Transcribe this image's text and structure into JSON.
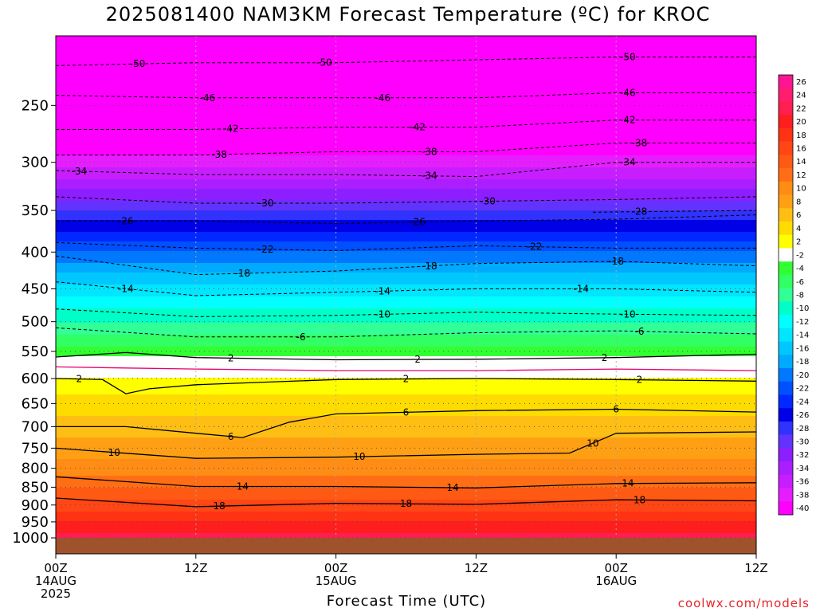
{
  "title": "2025081400 NAM3KM Forecast Temperature (ºC) for KROC",
  "xlabel": "Forecast Time (UTC)",
  "credit": "coolwx.com/models",
  "chart_data": {
    "type": "heatmap",
    "title": "2025081400 NAM3KM Forecast Temperature (ºC) for KROC",
    "xlabel": "Forecast Time (UTC)",
    "ylabel": "",
    "y_scale": "log-pressure",
    "ylim": [
      1000,
      200
    ],
    "xlim": [
      0,
      60
    ],
    "x_ticks": [
      {
        "value": 0,
        "lines": [
          "00Z",
          "14AUG",
          "2025"
        ]
      },
      {
        "value": 12,
        "lines": [
          "12Z"
        ]
      },
      {
        "value": 24,
        "lines": [
          "00Z",
          "15AUG"
        ]
      },
      {
        "value": 36,
        "lines": [
          "12Z"
        ]
      },
      {
        "value": 48,
        "lines": [
          "00Z",
          "16AUG"
        ]
      },
      {
        "value": 60,
        "lines": [
          "12Z"
        ]
      }
    ],
    "y_ticks": [
      250,
      300,
      350,
      400,
      450,
      500,
      550,
      600,
      650,
      700,
      750,
      800,
      850,
      900,
      950,
      1000
    ],
    "colorbar": {
      "levels": [
        26,
        24,
        22,
        20,
        18,
        16,
        14,
        12,
        10,
        8,
        6,
        4,
        2,
        -2,
        -4,
        -6,
        -8,
        -10,
        -12,
        -14,
        -16,
        -18,
        -20,
        -22,
        -24,
        -26,
        -28,
        -30,
        -32,
        -34,
        -36,
        -38,
        -40
      ],
      "colors": [
        "#ff1493",
        "#ff1e6e",
        "#ff1e50",
        "#ff1e1e",
        "#ff3214",
        "#ff4614",
        "#ff5a14",
        "#ff6e14",
        "#ff8c14",
        "#ffa014",
        "#ffbe14",
        "#ffdc00",
        "#ffff00",
        "#ffffff",
        "#32ff32",
        "#32ff64",
        "#32ff96",
        "#00ffc8",
        "#00ffff",
        "#00e6ff",
        "#00c8ff",
        "#00aaff",
        "#0078ff",
        "#0050ff",
        "#0028ff",
        "#0000e6",
        "#3232ff",
        "#6432ff",
        "#8c1eff",
        "#aa1eff",
        "#c81eff",
        "#e61eff",
        "#ff00ff"
      ]
    },
    "temperature_profile": [
      {
        "pressure": 1000,
        "temp": 23
      },
      {
        "pressure": 950,
        "temp": 20
      },
      {
        "pressure": 900,
        "temp": 17
      },
      {
        "pressure": 850,
        "temp": 14
      },
      {
        "pressure": 800,
        "temp": 11
      },
      {
        "pressure": 750,
        "temp": 9
      },
      {
        "pressure": 700,
        "temp": 7
      },
      {
        "pressure": 650,
        "temp": 5
      },
      {
        "pressure": 600,
        "temp": 2
      },
      {
        "pressure": 550,
        "temp": -3
      },
      {
        "pressure": 500,
        "temp": -8
      },
      {
        "pressure": 450,
        "temp": -13
      },
      {
        "pressure": 400,
        "temp": -20
      },
      {
        "pressure": 350,
        "temp": -28
      },
      {
        "pressure": 300,
        "temp": -37
      },
      {
        "pressure": 250,
        "temp": -46
      },
      {
        "pressure": 200,
        "temp": -52
      }
    ],
    "contours": [
      {
        "label": "-50",
        "style": "dashed",
        "points": [
          [
            0,
            220
          ],
          [
            12,
            218
          ],
          [
            24,
            218
          ],
          [
            36,
            216
          ],
          [
            48,
            214
          ],
          [
            60,
            214
          ]
        ],
        "labels_at": [
          7,
          23,
          49
        ]
      },
      {
        "label": "-46",
        "style": "dashed",
        "points": [
          [
            0,
            242
          ],
          [
            12,
            244
          ],
          [
            24,
            244
          ],
          [
            36,
            244
          ],
          [
            48,
            240
          ],
          [
            60,
            240
          ]
        ],
        "labels_at": [
          13,
          28,
          49
        ]
      },
      {
        "label": "-42",
        "style": "dashed",
        "points": [
          [
            0,
            270
          ],
          [
            12,
            270
          ],
          [
            24,
            268
          ],
          [
            36,
            268
          ],
          [
            48,
            262
          ],
          [
            60,
            262
          ]
        ],
        "labels_at": [
          15,
          31,
          49
        ]
      },
      {
        "label": "-38",
        "style": "dashed",
        "points": [
          [
            0,
            293
          ],
          [
            12,
            293
          ],
          [
            24,
            290
          ],
          [
            36,
            290
          ],
          [
            48,
            282
          ],
          [
            60,
            282
          ]
        ],
        "labels_at": [
          14,
          32,
          50
        ]
      },
      {
        "label": "-34",
        "style": "dashed",
        "points": [
          [
            0,
            308
          ],
          [
            12,
            312
          ],
          [
            24,
            312
          ],
          [
            36,
            314
          ],
          [
            48,
            300
          ],
          [
            60,
            300
          ]
        ],
        "labels_at": [
          2,
          32,
          49
        ]
      },
      {
        "label": "-30",
        "style": "dashed",
        "points": [
          [
            0,
            335
          ],
          [
            12,
            342
          ],
          [
            24,
            342
          ],
          [
            36,
            340
          ],
          [
            48,
            338
          ],
          [
            60,
            335
          ]
        ],
        "labels_at": [
          18,
          37
        ]
      },
      {
        "label": "-26",
        "style": "dashed",
        "points": [
          [
            0,
            362
          ],
          [
            12,
            362
          ],
          [
            24,
            365
          ],
          [
            36,
            362
          ],
          [
            48,
            360
          ],
          [
            60,
            355
          ]
        ],
        "labels_at": [
          6,
          31
        ]
      },
      {
        "label": "-28",
        "style": "dashed",
        "points": [
          [
            46,
            352
          ],
          [
            60,
            350
          ]
        ],
        "labels_at": [
          50
        ]
      },
      {
        "label": "-22",
        "style": "dashed",
        "points": [
          [
            0,
            388
          ],
          [
            12,
            395
          ],
          [
            24,
            398
          ],
          [
            36,
            392
          ],
          [
            48,
            395
          ],
          [
            60,
            395
          ]
        ],
        "labels_at": [
          18,
          41
        ]
      },
      {
        "label": "-18",
        "style": "dashed",
        "points": [
          [
            0,
            405
          ],
          [
            12,
            430
          ],
          [
            24,
            425
          ],
          [
            36,
            415
          ],
          [
            48,
            412
          ],
          [
            60,
            418
          ]
        ],
        "labels_at": [
          16,
          32,
          48
        ]
      },
      {
        "label": "-14",
        "style": "dashed",
        "points": [
          [
            0,
            440
          ],
          [
            12,
            460
          ],
          [
            24,
            455
          ],
          [
            36,
            450
          ],
          [
            48,
            450
          ],
          [
            60,
            455
          ]
        ],
        "labels_at": [
          6,
          28,
          45
        ]
      },
      {
        "label": "-10",
        "style": "dashed",
        "points": [
          [
            0,
            480
          ],
          [
            12,
            492
          ],
          [
            24,
            490
          ],
          [
            36,
            485
          ],
          [
            48,
            488
          ],
          [
            60,
            490
          ]
        ],
        "labels_at": [
          28,
          49
        ]
      },
      {
        "label": "-6",
        "style": "dashed",
        "points": [
          [
            0,
            510
          ],
          [
            12,
            525
          ],
          [
            24,
            525
          ],
          [
            36,
            518
          ],
          [
            48,
            515
          ],
          [
            60,
            520
          ]
        ],
        "labels_at": [
          21,
          50
        ]
      },
      {
        "label": "2",
        "style": "solid",
        "color": "#000000",
        "points": [
          [
            0,
            560
          ],
          [
            3,
            556
          ],
          [
            6,
            552
          ],
          [
            12,
            561
          ],
          [
            24,
            565
          ],
          [
            36,
            564
          ],
          [
            48,
            561
          ],
          [
            60,
            555
          ]
        ],
        "labels_at": [
          15,
          31,
          47
        ]
      },
      {
        "label": "-2",
        "style": "solid",
        "color": "#e8006e",
        "points": [
          [
            0,
            578
          ],
          [
            6,
            580
          ],
          [
            12,
            582
          ],
          [
            24,
            585
          ],
          [
            36,
            585
          ],
          [
            48,
            582
          ],
          [
            60,
            585
          ]
        ],
        "labels_at": []
      },
      {
        "label": "2",
        "style": "solid",
        "color": "#000000",
        "points": [
          [
            0,
            600
          ],
          [
            4,
            602
          ],
          [
            6,
            630
          ],
          [
            8,
            620
          ],
          [
            12,
            612
          ],
          [
            24,
            602
          ],
          [
            36,
            600
          ],
          [
            48,
            602
          ],
          [
            60,
            605
          ]
        ],
        "labels_at": [
          2,
          30,
          50
        ]
      },
      {
        "label": "6",
        "style": "solid",
        "color": "#000000",
        "points": [
          [
            0,
            700
          ],
          [
            6,
            700
          ],
          [
            12,
            715
          ],
          [
            16,
            725
          ],
          [
            20,
            690
          ],
          [
            24,
            672
          ],
          [
            36,
            665
          ],
          [
            48,
            662
          ],
          [
            60,
            668
          ]
        ],
        "labels_at": [
          15,
          30,
          48
        ]
      },
      {
        "label": "10",
        "style": "solid",
        "color": "#000000",
        "points": [
          [
            0,
            750
          ],
          [
            12,
            775
          ],
          [
            24,
            772
          ],
          [
            36,
            765
          ],
          [
            44,
            762
          ],
          [
            48,
            715
          ],
          [
            60,
            712
          ]
        ],
        "labels_at": [
          5,
          26,
          46
        ]
      },
      {
        "label": "14",
        "style": "solid",
        "color": "#000000",
        "points": [
          [
            0,
            822
          ],
          [
            12,
            848
          ],
          [
            24,
            848
          ],
          [
            36,
            852
          ],
          [
            48,
            840
          ],
          [
            60,
            838
          ]
        ],
        "labels_at": [
          16,
          34,
          49
        ]
      },
      {
        "label": "18",
        "style": "solid",
        "color": "#000000",
        "points": [
          [
            0,
            880
          ],
          [
            12,
            905
          ],
          [
            24,
            895
          ],
          [
            36,
            898
          ],
          [
            48,
            885
          ],
          [
            60,
            888
          ]
        ],
        "labels_at": [
          14,
          30,
          50
        ]
      }
    ]
  }
}
